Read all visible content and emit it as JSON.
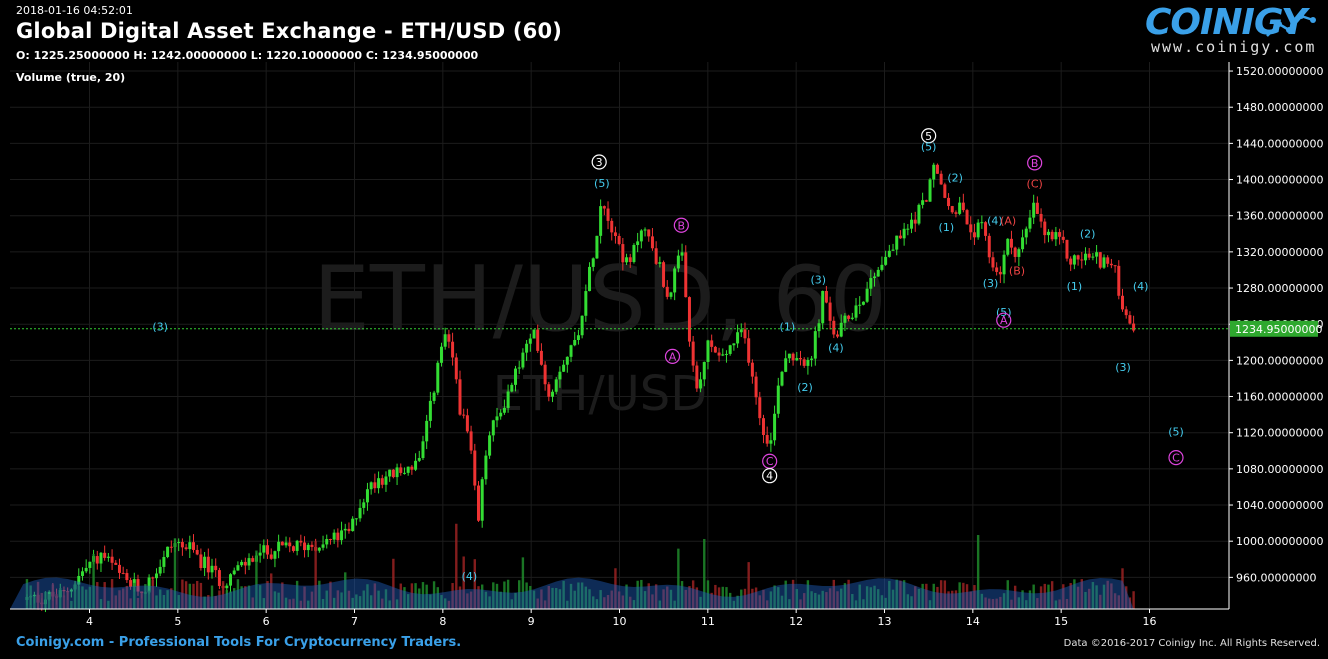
{
  "header": {
    "timestamp": "2018-01-16 04:52:01",
    "title": "Global Digital Asset Exchange - ETH/USD (60)",
    "ohlc": "O: 1225.25000000 H: 1242.00000000 L: 1220.10000000 C: 1234.95000000",
    "volume_label": "Volume (true, 20)"
  },
  "logo": {
    "brand": "COINIGY",
    "url": "www.coinigy.com"
  },
  "footer": {
    "left": "Coinigy.com - Professional Tools For Cryptocurrency Traders.",
    "right": "Data ©2016-2017 Coinigy Inc. All Rights Reserved."
  },
  "watermark": {
    "main": "ETH/USD, 60",
    "sub": "ETH/USD"
  },
  "colors": {
    "up": "#33dd33",
    "down": "#ee3333",
    "grid": "#1c1c1c",
    "price_line": "#33cc33",
    "wave_cyan": "#44ccee",
    "wave_magenta": "#dd44dd",
    "wave_white": "#ffffff",
    "wave_red": "#ee4444",
    "volume_ma": "#1f5fbf"
  },
  "chart_data": {
    "type": "candlestick",
    "title": "Global Digital Asset Exchange - ETH/USD (60)",
    "x_ticks": [
      "4",
      "5",
      "6",
      "7",
      "8",
      "9",
      "10",
      "11",
      "12",
      "13",
      "14",
      "15",
      "16"
    ],
    "y_ticks": [
      "1520.00000000",
      "1480.00000000",
      "1440.00000000",
      "1400.00000000",
      "1360.00000000",
      "1320.00000000",
      "1280.00000000",
      "1240.00000000",
      "1200.00000000",
      "1160.00000000",
      "1120.00000000",
      "1080.00000000",
      "1040.00000000",
      "1000.00000000",
      "960.00000000"
    ],
    "xlim": [
      3.1,
      16.9
    ],
    "ylim": [
      925,
      1530
    ],
    "current_price": 1234.95,
    "current_price_label": "1234.95000000",
    "price_path": [
      [
        3.25,
        935
      ],
      [
        3.7,
        940
      ],
      [
        4.0,
        975
      ],
      [
        4.15,
        985
      ],
      [
        4.4,
        955
      ],
      [
        4.6,
        945
      ],
      [
        4.8,
        975
      ],
      [
        4.95,
        1000
      ],
      [
        5.15,
        990
      ],
      [
        5.35,
        970
      ],
      [
        5.5,
        955
      ],
      [
        5.7,
        970
      ],
      [
        5.9,
        985
      ],
      [
        6.1,
        990
      ],
      [
        6.4,
        995
      ],
      [
        6.7,
        1000
      ],
      [
        6.95,
        1010
      ],
      [
        7.05,
        1040
      ],
      [
        7.25,
        1070
      ],
      [
        7.5,
        1075
      ],
      [
        7.75,
        1090
      ],
      [
        7.9,
        1170
      ],
      [
        8.0,
        1225
      ],
      [
        8.1,
        1210
      ],
      [
        8.2,
        1145
      ],
      [
        8.3,
        1110
      ],
      [
        8.4,
        1020
      ],
      [
        8.5,
        1110
      ],
      [
        8.7,
        1155
      ],
      [
        8.9,
        1205
      ],
      [
        9.05,
        1230
      ],
      [
        9.2,
        1160
      ],
      [
        9.35,
        1200
      ],
      [
        9.5,
        1220
      ],
      [
        9.65,
        1290
      ],
      [
        9.8,
        1380
      ],
      [
        9.95,
        1340
      ],
      [
        10.1,
        1300
      ],
      [
        10.25,
        1350
      ],
      [
        10.4,
        1320
      ],
      [
        10.55,
        1270
      ],
      [
        10.7,
        1320
      ],
      [
        10.8,
        1210
      ],
      [
        10.9,
        1160
      ],
      [
        11.0,
        1220
      ],
      [
        11.15,
        1200
      ],
      [
        11.3,
        1220
      ],
      [
        11.4,
        1230
      ],
      [
        11.5,
        1190
      ],
      [
        11.6,
        1130
      ],
      [
        11.72,
        1108
      ],
      [
        11.8,
        1180
      ],
      [
        11.9,
        1210
      ],
      [
        12.05,
        1205
      ],
      [
        12.15,
        1190
      ],
      [
        12.3,
        1270
      ],
      [
        12.45,
        1225
      ],
      [
        12.6,
        1250
      ],
      [
        12.75,
        1270
      ],
      [
        12.9,
        1300
      ],
      [
        13.05,
        1320
      ],
      [
        13.25,
        1345
      ],
      [
        13.45,
        1375
      ],
      [
        13.55,
        1412
      ],
      [
        13.65,
        1390
      ],
      [
        13.75,
        1360
      ],
      [
        13.85,
        1375
      ],
      [
        13.95,
        1340
      ],
      [
        14.1,
        1345
      ],
      [
        14.2,
        1310
      ],
      [
        14.3,
        1295
      ],
      [
        14.4,
        1330
      ],
      [
        14.5,
        1320
      ],
      [
        14.6,
        1340
      ],
      [
        14.7,
        1372
      ],
      [
        14.8,
        1340
      ],
      [
        15.0,
        1330
      ],
      [
        15.1,
        1310
      ],
      [
        15.3,
        1315
      ],
      [
        15.5,
        1310
      ],
      [
        15.6,
        1300
      ],
      [
        15.7,
        1260
      ],
      [
        15.75,
        1235
      ],
      [
        15.82,
        1235
      ]
    ],
    "wave_labels": [
      {
        "text": "(3)",
        "x": 4.8,
        "y": 1233,
        "color": "cyan"
      },
      {
        "text": "(4)",
        "x": 8.3,
        "y": 957,
        "color": "cyan"
      },
      {
        "text": "(5)",
        "x": 9.8,
        "y": 1392,
        "color": "cyan"
      },
      {
        "text": "3",
        "x": 9.77,
        "y": 1415,
        "color": "white",
        "circle": true
      },
      {
        "text": "B",
        "x": 10.7,
        "y": 1345,
        "color": "magenta",
        "circle": true
      },
      {
        "text": "A",
        "x": 10.6,
        "y": 1200,
        "color": "magenta",
        "circle": true
      },
      {
        "text": "C",
        "x": 11.7,
        "y": 1084,
        "color": "magenta",
        "circle": true
      },
      {
        "text": "4",
        "x": 11.7,
        "y": 1068,
        "color": "white",
        "circle": true
      },
      {
        "text": "(1)",
        "x": 11.9,
        "y": 1233,
        "color": "cyan"
      },
      {
        "text": "(2)",
        "x": 12.1,
        "y": 1166,
        "color": "cyan"
      },
      {
        "text": "(3)",
        "x": 12.25,
        "y": 1285,
        "color": "cyan"
      },
      {
        "text": "(4)",
        "x": 12.45,
        "y": 1210,
        "color": "cyan"
      },
      {
        "text": "5",
        "x": 13.5,
        "y": 1444,
        "color": "white",
        "circle": true
      },
      {
        "text": "(5)",
        "x": 13.5,
        "y": 1432,
        "color": "cyan"
      },
      {
        "text": "(2)",
        "x": 13.8,
        "y": 1398,
        "color": "cyan"
      },
      {
        "text": "(1)",
        "x": 13.7,
        "y": 1343,
        "color": "cyan"
      },
      {
        "text": "(4)",
        "x": 14.25,
        "y": 1350,
        "color": "cyan"
      },
      {
        "text": "(A)",
        "x": 14.4,
        "y": 1350,
        "color": "red"
      },
      {
        "text": "(B)",
        "x": 14.5,
        "y": 1295,
        "color": "red"
      },
      {
        "text": "(3)",
        "x": 14.2,
        "y": 1281,
        "color": "cyan"
      },
      {
        "text": "(5)",
        "x": 14.35,
        "y": 1249,
        "color": "cyan"
      },
      {
        "text": "A",
        "x": 14.35,
        "y": 1240,
        "color": "magenta",
        "circle": true
      },
      {
        "text": "B",
        "x": 14.7,
        "y": 1414,
        "color": "magenta",
        "circle": true
      },
      {
        "text": "(C)",
        "x": 14.7,
        "y": 1391,
        "color": "red"
      },
      {
        "text": "(2)",
        "x": 15.3,
        "y": 1336,
        "color": "cyan"
      },
      {
        "text": "(1)",
        "x": 15.15,
        "y": 1278,
        "color": "cyan"
      },
      {
        "text": "(4)",
        "x": 15.9,
        "y": 1278,
        "color": "cyan"
      },
      {
        "text": "(3)",
        "x": 15.7,
        "y": 1188,
        "color": "cyan"
      },
      {
        "text": "(5)",
        "x": 16.3,
        "y": 1117,
        "color": "cyan"
      },
      {
        "text": "C",
        "x": 16.3,
        "y": 1088,
        "color": "magenta",
        "circle": true
      }
    ]
  }
}
